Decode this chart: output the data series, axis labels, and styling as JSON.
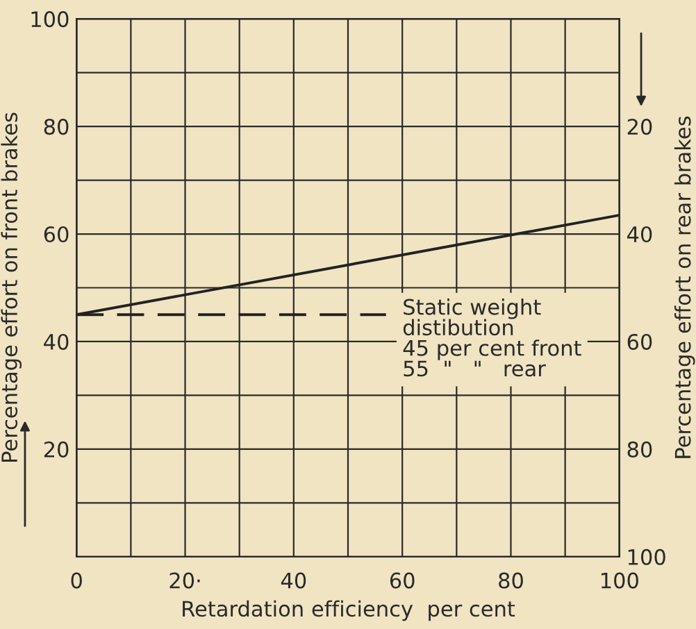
{
  "chart_data": {
    "type": "line",
    "xlabel": "Retardation efficiency  per cent",
    "ylabel": "Percentage effort on front brakes",
    "y2label": "Percentage effort on rear brakes",
    "series": [
      {
        "x": [
          0,
          100
        ],
        "values": [
          45,
          63.5
        ],
        "color": "#222222",
        "line_style": "solid"
      },
      {
        "x": [
          0,
          57
        ],
        "values": [
          45,
          45
        ],
        "color": "#222222",
        "line_style": "dashed"
      }
    ],
    "xlim": [
      0,
      100
    ],
    "xticks": [
      0,
      {
        "value": 10,
        "label": null
      },
      {
        "value": 20,
        "label": "20·"
      },
      {
        "value": 30,
        "label": null
      },
      40,
      {
        "value": 50,
        "label": null
      },
      60,
      {
        "value": 70,
        "label": null
      },
      80,
      {
        "value": 90,
        "label": null
      },
      100
    ],
    "ylim": [
      0,
      100
    ],
    "yticks": [
      {
        "value": 10,
        "label": null
      },
      20,
      {
        "value": 30,
        "label": null
      },
      40,
      {
        "value": 50,
        "label": null
      },
      60,
      {
        "value": 70,
        "label": null
      },
      80,
      {
        "value": 90,
        "label": null
      },
      100
    ],
    "y2lim": [
      100,
      0
    ],
    "y2ticks": [
      20,
      40,
      60,
      80,
      100
    ],
    "annotations": [
      "Static weight\ndistibution\n45 per cent front\n55  \"   \"   rear"
    ],
    "grid": true,
    "legend": false
  }
}
